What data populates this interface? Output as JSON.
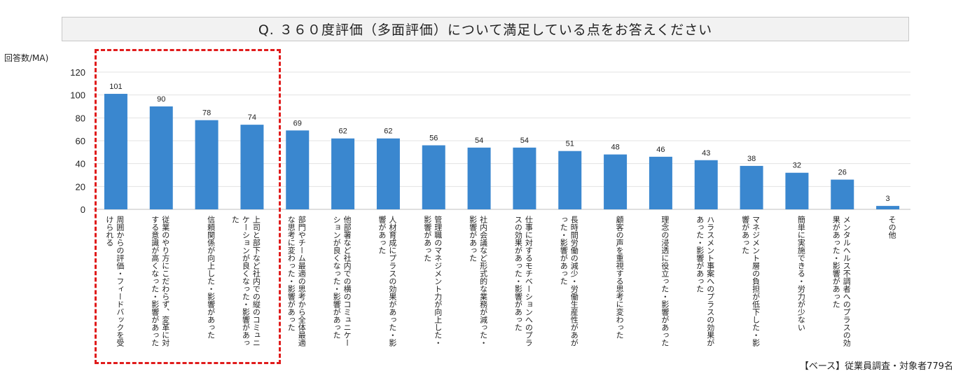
{
  "chart_data": {
    "type": "bar",
    "title": "Q. ３６０度評価（多面評価）について満足している点をお答えください",
    "ylabel": "回答数/MA)",
    "ylim": [
      0,
      120
    ],
    "yticks": [
      0,
      20,
      40,
      60,
      80,
      100,
      120
    ],
    "grid": true,
    "bar_color": "#3a87cf",
    "highlight_color": "#e01b1b",
    "categories": [
      "周囲からの評価・フィードバックを受けられる",
      "従業のやり方にこだわらず、変革に対する意識が高くなった・影響があった",
      "信頼関係が向上した・影響があった",
      "上司と部下など社内での縦のコミュニケーションが良くなった・影響があった",
      "部門やチーム最適の思考から全体最適な思考に変わった・影響があった",
      "他部署など社内での横のコミュニケーションが良くなった・影響があった",
      "人材育成にプラスの効果があった・影響があった",
      "管理職のマネジメント力が向上した・影響があった",
      "社内会議など形式的な業務が減った・影響があった",
      "仕事に対するモチベーションへのプラスの効果があった・影響があった",
      "長時間労働の減少・労働生産性があがった・影響があった",
      "顧客の声を重視する思考に変わった",
      "理念の浸透に役立った・影響があった",
      "ハラスメント事案へのプラスの効果があった・影響があった",
      "マネジメント層の負担が低下した・影響があった",
      "簡単に実施できる・労力が少ない",
      "メンタルヘルス不調者へのプラスの効果があった・影響があった",
      "その他"
    ],
    "values": [
      101,
      90,
      78,
      74,
      69,
      62,
      62,
      56,
      54,
      54,
      51,
      48,
      46,
      43,
      38,
      32,
      26,
      3
    ]
  },
  "footer": {
    "base_note": "【ベース】従業員調査・対象者779名"
  }
}
